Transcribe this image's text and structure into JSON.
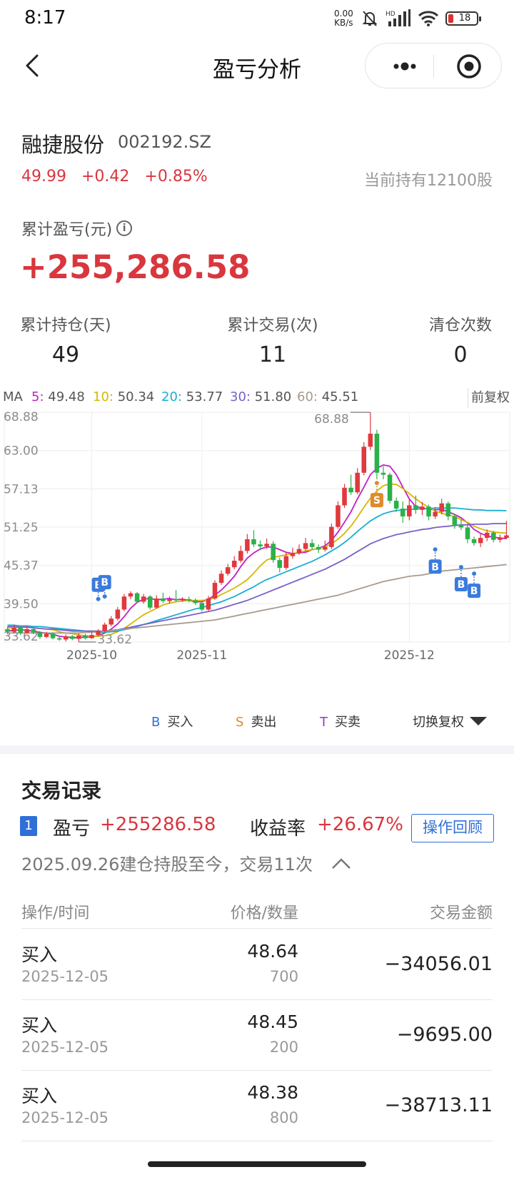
{
  "status_bar": {
    "time": "8:17",
    "net_speed": "0.00",
    "net_unit": "KB/s",
    "hd": "HD",
    "battery": "18"
  },
  "nav": {
    "title": "盈亏分析"
  },
  "stock": {
    "name": "融捷股份",
    "code": "002192.SZ",
    "price": "49.99",
    "change": "+0.42",
    "change_pct": "+0.85%",
    "holding": "当前持有12100股"
  },
  "pl": {
    "label": "累计盈亏(元)",
    "value": "+255,286.58"
  },
  "stats": [
    {
      "label": "累计持仓(天)",
      "value": "49"
    },
    {
      "label": "累计交易(次)",
      "value": "11"
    },
    {
      "label": "清仓次数",
      "value": "0"
    }
  ],
  "ma": {
    "prefix": "MA",
    "items": [
      {
        "key": "5:",
        "value": "49.48",
        "color": "#c21fc4"
      },
      {
        "key": "10:",
        "value": "50.34",
        "color": "#d4b800"
      },
      {
        "key": "20:",
        "value": "53.77",
        "color": "#1aaed2"
      },
      {
        "key": "30:",
        "value": "51.80",
        "color": "#7a5fc8"
      },
      {
        "key": "60:",
        "value": "45.51",
        "color": "#a89a8e"
      }
    ],
    "fq": "前复权"
  },
  "chart_data": {
    "type": "candlestick",
    "ylim": [
      33.62,
      68.88
    ],
    "y_ticks": [
      "68.88",
      "63.00",
      "57.13",
      "51.25",
      "45.37",
      "39.50",
      "33.62"
    ],
    "x_ticks": [
      "2025-10",
      "2025-11",
      "2025-12"
    ],
    "high_label": "68.88",
    "low_label": "33.62",
    "up_color": "#e0393e",
    "down_color": "#2bb04a",
    "candles": [
      [
        35.6,
        35.2,
        36.0,
        34.8
      ],
      [
        35.2,
        35.8,
        36.3,
        35.0
      ],
      [
        35.8,
        35.0,
        36.0,
        34.7
      ],
      [
        35.0,
        35.6,
        36.1,
        34.9
      ],
      [
        35.6,
        35.1,
        35.9,
        34.8
      ],
      [
        35.1,
        34.4,
        35.3,
        34.1
      ],
      [
        34.4,
        34.9,
        35.2,
        34.2
      ],
      [
        34.9,
        34.2,
        35.1,
        34.0
      ],
      [
        34.2,
        34.0,
        34.6,
        33.8
      ],
      [
        34.0,
        34.5,
        34.8,
        33.7
      ],
      [
        34.5,
        34.1,
        34.7,
        33.9
      ],
      [
        34.1,
        34.6,
        35.0,
        33.62
      ],
      [
        34.6,
        34.2,
        34.9,
        34.0
      ],
      [
        34.2,
        34.7,
        35.1,
        34.1
      ],
      [
        34.7,
        35.3,
        35.6,
        34.5
      ],
      [
        35.3,
        36.3,
        36.6,
        35.1
      ],
      [
        36.3,
        37.2,
        37.6,
        36.0
      ],
      [
        37.2,
        38.6,
        39.0,
        36.9
      ],
      [
        38.6,
        40.6,
        41.0,
        38.3
      ],
      [
        40.6,
        41.1,
        41.4,
        40.2
      ],
      [
        41.1,
        39.8,
        41.3,
        39.6
      ],
      [
        39.8,
        40.6,
        41.0,
        39.5
      ],
      [
        40.6,
        38.9,
        40.8,
        38.6
      ],
      [
        38.9,
        40.3,
        40.8,
        38.7
      ],
      [
        40.3,
        39.9,
        41.2,
        39.6
      ],
      [
        39.9,
        40.2,
        40.6,
        39.5
      ],
      [
        40.2,
        40.0,
        41.6,
        39.8
      ],
      [
        40.0,
        40.2,
        40.5,
        39.8
      ],
      [
        40.2,
        40.0,
        40.6,
        39.7
      ],
      [
        40.0,
        39.6,
        40.3,
        39.3
      ],
      [
        39.6,
        38.6,
        39.8,
        38.3
      ],
      [
        38.6,
        40.3,
        40.7,
        38.4
      ],
      [
        40.3,
        42.7,
        43.1,
        40.1
      ],
      [
        42.7,
        44.1,
        44.6,
        42.4
      ],
      [
        44.1,
        45.1,
        45.6,
        43.8
      ],
      [
        45.1,
        46.1,
        46.8,
        44.8
      ],
      [
        46.1,
        47.6,
        48.4,
        45.8
      ],
      [
        47.6,
        49.4,
        50.2,
        47.2
      ],
      [
        49.4,
        48.6,
        50.8,
        48.2
      ],
      [
        48.6,
        48.3,
        49.2,
        47.7
      ],
      [
        48.3,
        48.7,
        49.5,
        47.9
      ],
      [
        48.7,
        46.2,
        49.1,
        45.8
      ],
      [
        46.2,
        45.0,
        46.6,
        44.3
      ],
      [
        45.0,
        46.8,
        47.4,
        44.7
      ],
      [
        46.8,
        47.3,
        48.1,
        46.4
      ],
      [
        47.3,
        47.9,
        48.6,
        47.0
      ],
      [
        47.9,
        48.8,
        49.6,
        47.6
      ],
      [
        48.8,
        48.2,
        49.4,
        47.8
      ],
      [
        48.2,
        47.8,
        48.6,
        47.3
      ],
      [
        47.8,
        48.2,
        49.2,
        47.5
      ],
      [
        48.2,
        51.3,
        51.8,
        47.9
      ],
      [
        51.3,
        54.6,
        55.2,
        51.0
      ],
      [
        54.6,
        57.3,
        57.9,
        54.2
      ],
      [
        57.3,
        56.6,
        59.3,
        56.2
      ],
      [
        56.6,
        59.6,
        60.3,
        56.3
      ],
      [
        59.6,
        63.6,
        64.3,
        59.2
      ],
      [
        63.6,
        65.6,
        68.88,
        63.1
      ],
      [
        65.6,
        59.6,
        66.2,
        58.6
      ],
      [
        59.6,
        59.3,
        60.6,
        58.6
      ],
      [
        59.3,
        55.3,
        59.6,
        54.9
      ],
      [
        55.3,
        54.1,
        55.8,
        53.6
      ],
      [
        54.1,
        52.9,
        55.2,
        51.9
      ],
      [
        52.9,
        54.6,
        55.6,
        52.3
      ],
      [
        54.6,
        53.9,
        56.1,
        53.3
      ],
      [
        53.9,
        54.4,
        55.1,
        53.1
      ],
      [
        54.4,
        52.9,
        54.7,
        52.3
      ],
      [
        52.9,
        53.6,
        54.3,
        52.5
      ],
      [
        53.6,
        54.9,
        55.6,
        53.2
      ],
      [
        54.9,
        52.9,
        55.2,
        52.3
      ],
      [
        52.9,
        51.6,
        53.3,
        51.0
      ],
      [
        51.6,
        51.2,
        52.4,
        50.8
      ],
      [
        51.2,
        49.4,
        51.7,
        48.8
      ],
      [
        49.4,
        48.8,
        49.8,
        48.4
      ],
      [
        48.8,
        49.6,
        50.2,
        48.2
      ],
      [
        49.6,
        50.4,
        50.9,
        49.1
      ],
      [
        50.4,
        49.3,
        50.7,
        48.9
      ],
      [
        49.3,
        49.6,
        50.1,
        48.9
      ],
      [
        49.6,
        49.99,
        52.2,
        49.4
      ]
    ],
    "series": [
      {
        "name": "5",
        "color": "#c21fc4",
        "values": [
          35.3,
          35.4,
          35.5,
          35.4,
          35.3,
          35.1,
          35.0,
          34.8,
          34.5,
          34.4,
          34.3,
          34.3,
          34.4,
          34.4,
          34.6,
          35.0,
          35.6,
          36.4,
          37.5,
          38.8,
          39.7,
          40.2,
          40.3,
          40.1,
          40.2,
          40.3,
          40.1,
          40.2,
          40.0,
          39.8,
          39.8,
          40.2,
          40.8,
          41.6,
          42.6,
          43.7,
          45.2,
          46.5,
          47.3,
          47.9,
          48.2,
          48.2,
          47.8,
          47.4,
          47.2,
          47.3,
          47.4,
          47.8,
          48.0,
          48.4,
          49.2,
          50.5,
          52.0,
          53.6,
          55.6,
          57.4,
          59.3,
          60.3,
          60.8,
          60.6,
          59.3,
          57.4,
          55.6,
          54.4,
          54.2,
          54.0,
          53.9,
          54.0,
          53.6,
          53.2,
          52.7,
          51.9,
          50.9,
          50.3,
          49.9,
          49.7,
          49.6,
          49.5
        ]
      },
      {
        "name": "10",
        "color": "#d4b800",
        "values": [
          35.8,
          35.8,
          35.9,
          35.9,
          35.8,
          35.7,
          35.6,
          35.5,
          35.2,
          35.0,
          34.9,
          34.7,
          34.6,
          34.5,
          34.5,
          34.6,
          34.8,
          35.2,
          35.7,
          36.4,
          37.1,
          37.8,
          38.3,
          38.8,
          39.3,
          39.6,
          39.8,
          39.9,
          40.0,
          40.0,
          40.0,
          40.1,
          40.4,
          40.9,
          41.4,
          41.9,
          42.5,
          43.2,
          44.2,
          45.3,
          46.2,
          46.6,
          46.8,
          47.0,
          47.2,
          47.4,
          47.6,
          47.8,
          48.0,
          48.2,
          48.7,
          49.4,
          50.3,
          51.4,
          52.8,
          54.3,
          55.7,
          56.8,
          57.6,
          57.9,
          57.8,
          57.2,
          56.4,
          55.6,
          54.9,
          54.3,
          53.7,
          53.4,
          53.1,
          52.9,
          52.4,
          52.0,
          51.4,
          51.0,
          50.7,
          50.5,
          50.4,
          50.34
        ]
      },
      {
        "name": "20",
        "color": "#1aaed2",
        "values": [
          36.2,
          36.2,
          36.1,
          36.1,
          36.0,
          36.0,
          35.9,
          35.8,
          35.7,
          35.6,
          35.5,
          35.4,
          35.3,
          35.2,
          35.1,
          35.1,
          35.2,
          35.3,
          35.5,
          35.7,
          36.0,
          36.3,
          36.6,
          36.9,
          37.2,
          37.5,
          37.8,
          38.1,
          38.4,
          38.7,
          38.9,
          39.2,
          39.5,
          39.8,
          40.2,
          40.6,
          41.1,
          41.6,
          42.1,
          42.7,
          43.2,
          43.6,
          44.0,
          44.4,
          44.8,
          45.2,
          45.6,
          46.0,
          46.5,
          47.0,
          47.6,
          48.2,
          48.9,
          49.7,
          50.6,
          51.4,
          52.2,
          52.8,
          53.3,
          53.6,
          53.8,
          53.9,
          54.0,
          54.0,
          54.1,
          54.1,
          54.2,
          54.2,
          54.2,
          54.2,
          54.1,
          54.0,
          53.9,
          53.9,
          53.8,
          53.8,
          53.8,
          53.77
        ]
      },
      {
        "name": "30",
        "color": "#7a5fc8",
        "values": [
          36.0,
          36.0,
          35.9,
          35.9,
          35.8,
          35.7,
          35.6,
          35.6,
          35.5,
          35.4,
          35.3,
          35.3,
          35.3,
          35.3,
          35.3,
          35.3,
          35.4,
          35.5,
          35.7,
          35.9,
          36.1,
          36.3,
          36.5,
          36.7,
          36.9,
          37.1,
          37.3,
          37.5,
          37.7,
          37.9,
          38.1,
          38.3,
          38.5,
          38.8,
          39.1,
          39.4,
          39.7,
          40.0,
          40.4,
          40.8,
          41.2,
          41.6,
          42.0,
          42.4,
          42.8,
          43.2,
          43.6,
          44.0,
          44.4,
          44.8,
          45.3,
          45.8,
          46.3,
          46.9,
          47.5,
          48.1,
          48.7,
          49.1,
          49.5,
          49.8,
          50.1,
          50.3,
          50.5,
          50.7,
          50.9,
          51.0,
          51.2,
          51.3,
          51.4,
          51.5,
          51.6,
          51.6,
          51.7,
          51.7,
          51.7,
          51.8,
          51.8,
          51.8
        ]
      },
      {
        "name": "60",
        "color": "#a89a8e",
        "values": [
          35.0,
          35.0,
          35.0,
          35.0,
          35.0,
          35.0,
          35.0,
          35.0,
          35.0,
          35.0,
          35.0,
          35.0,
          35.1,
          35.1,
          35.2,
          35.3,
          35.4,
          35.5,
          35.6,
          35.7,
          35.8,
          35.9,
          36.0,
          36.1,
          36.2,
          36.3,
          36.4,
          36.5,
          36.6,
          36.7,
          36.8,
          36.9,
          37.0,
          37.2,
          37.4,
          37.6,
          37.8,
          38.0,
          38.2,
          38.4,
          38.6,
          38.8,
          39.0,
          39.2,
          39.4,
          39.6,
          39.8,
          40.0,
          40.2,
          40.4,
          40.6,
          40.8,
          41.1,
          41.4,
          41.7,
          42.0,
          42.3,
          42.6,
          42.9,
          43.1,
          43.3,
          43.5,
          43.7,
          43.8,
          43.9,
          44.1,
          44.3,
          44.5,
          44.6,
          44.7,
          44.8,
          44.9,
          45.0,
          45.1,
          45.2,
          45.3,
          45.4,
          45.51
        ]
      }
    ],
    "markers": [
      {
        "type": "B",
        "index": 14,
        "value": 38.9,
        "dir": "up"
      },
      {
        "type": "B",
        "index": 15,
        "value": 39.3,
        "dir": "up"
      },
      {
        "type": "S",
        "index": 57,
        "value": 58.9,
        "dir": "down"
      },
      {
        "type": "B",
        "index": 66,
        "value": 48.7,
        "dir": "down"
      },
      {
        "type": "B",
        "index": 70,
        "value": 46.0,
        "dir": "down"
      },
      {
        "type": "B",
        "index": 72,
        "value": 45.0,
        "dir": "down"
      }
    ]
  },
  "legend": [
    {
      "mark": "B",
      "label": "买入",
      "color": "#2f6fd6"
    },
    {
      "mark": "S",
      "label": "卖出",
      "color": "#e08a2b"
    },
    {
      "mark": "T",
      "label": "买卖",
      "color": "#8a3fc6"
    }
  ],
  "switch_label": "切换复权",
  "records": {
    "title": "交易记录",
    "index": "1",
    "pl_label": "盈亏",
    "pl_value": "+255286.58",
    "rate_label": "收益率",
    "rate_value": "+26.67%",
    "review_button": "操作回顾",
    "since": "2025.09.26建仓持股至今，交易11次",
    "headers": [
      "操作/时间",
      "价格/数量",
      "交易金额"
    ],
    "rows": [
      {
        "op": "买入",
        "date": "2025-12-05",
        "price": "48.64",
        "qty": "700",
        "amount": "−34056.01"
      },
      {
        "op": "买入",
        "date": "2025-12-05",
        "price": "48.45",
        "qty": "200",
        "amount": "−9695.00"
      },
      {
        "op": "买入",
        "date": "2025-12-05",
        "price": "48.38",
        "qty": "800",
        "amount": "−38713.11"
      }
    ]
  }
}
